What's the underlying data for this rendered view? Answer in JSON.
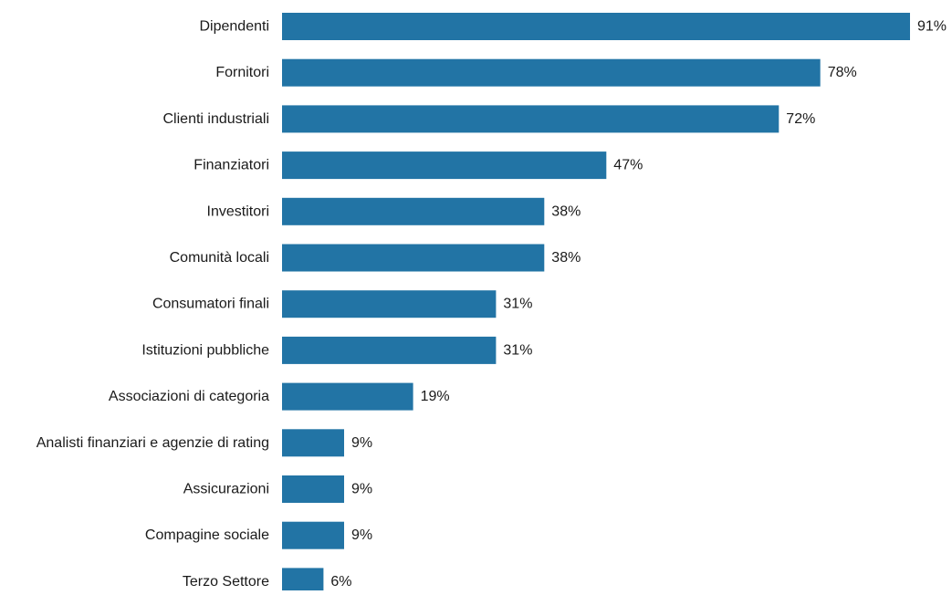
{
  "chart_data": {
    "type": "bar",
    "orientation": "horizontal",
    "categories": [
      "Dipendenti",
      "Fornitori",
      "Clienti industriali",
      "Finanziatori",
      "Investitori",
      "Comunità locali",
      "Consumatori finali",
      "Istituzioni pubbliche",
      "Associazioni di categoria",
      "Analisti finanziari e agenzie di rating",
      "Assicurazioni",
      "Compagine sociale",
      "Terzo Settore"
    ],
    "values": [
      91,
      78,
      72,
      47,
      38,
      38,
      31,
      31,
      19,
      9,
      9,
      9,
      6
    ],
    "value_labels": [
      "91%",
      "78%",
      "72%",
      "47%",
      "38%",
      "38%",
      "31%",
      "31%",
      "19%",
      "9%",
      "9%",
      "9%",
      "6%"
    ],
    "title": "",
    "xlabel": "",
    "ylabel": "",
    "xlim": [
      0,
      91
    ],
    "grid": false,
    "bar_color": "#2274a5"
  }
}
